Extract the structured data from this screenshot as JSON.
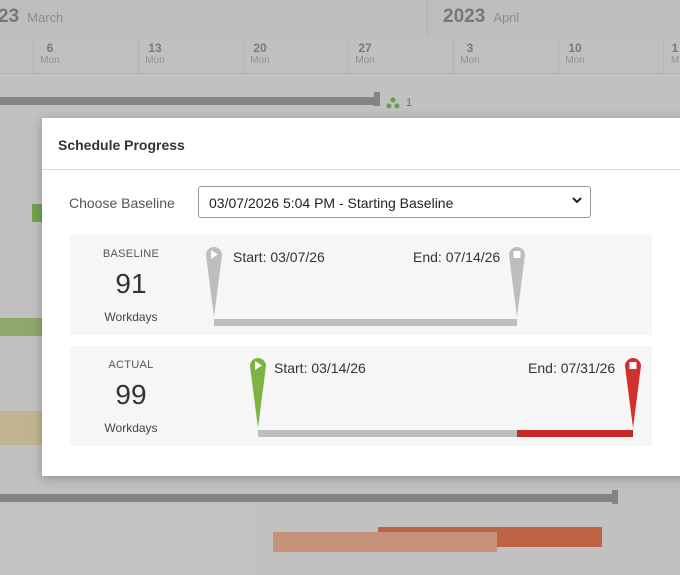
{
  "background": {
    "months": [
      {
        "year": "23",
        "name": "March"
      },
      {
        "year": "2023",
        "name": "April"
      }
    ],
    "days": [
      {
        "num": "6",
        "dow": "Mon"
      },
      {
        "num": "13",
        "dow": "Mon"
      },
      {
        "num": "20",
        "dow": "Mon"
      },
      {
        "num": "27",
        "dow": "Mon"
      },
      {
        "num": "3",
        "dow": "Mon"
      },
      {
        "num": "10",
        "dow": "Mon"
      },
      {
        "num": "1",
        "dow": "M"
      }
    ],
    "dependency_count": "1"
  },
  "modal": {
    "title": "Schedule Progress",
    "choose_label": "Choose Baseline",
    "selected_baseline": "03/07/2026 5:04 PM - Starting Baseline"
  },
  "baseline": {
    "label": "BASELINE",
    "workdays": "91",
    "unit": "Workdays",
    "start": "Start: 03/07/26",
    "end": "End: 07/14/26"
  },
  "actual": {
    "label": "ACTUAL",
    "workdays": "99",
    "unit": "Workdays",
    "start": "Start: 03/14/26",
    "end": "End: 07/31/26"
  },
  "colors": {
    "start_pin_actual": "#7cb342",
    "end_pin_actual": "#d32f2f",
    "baseline_pin": "#bdbdbd",
    "track_gray": "#bdbdbd",
    "overrun_red": "#c62828"
  }
}
